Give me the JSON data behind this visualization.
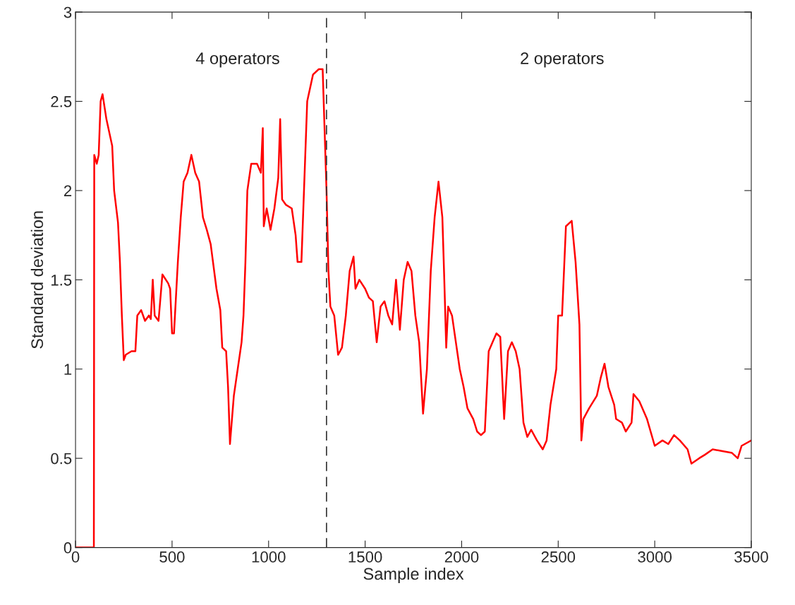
{
  "chart_data": {
    "type": "line",
    "xlabel": "Sample index",
    "ylabel": "Standard deviation",
    "xlim": [
      0,
      3500
    ],
    "xticks": [
      0,
      500,
      1000,
      1500,
      2000,
      2500,
      3000,
      3500
    ],
    "ylim": [
      0,
      3
    ],
    "yticks": [
      0,
      0.5,
      1,
      1.5,
      2,
      2.5,
      3
    ],
    "grid": false,
    "marker": "none",
    "line_style": "solid",
    "legend": false,
    "annotations": [
      "4 operators",
      "2 operators"
    ],
    "ref_lines": [
      {
        "axis": "x",
        "value": 1300,
        "color": "#333333",
        "line_style": "dashed"
      }
    ],
    "series": [
      {
        "color": "#ff0000",
        "x": [
          0,
          95,
          97,
          110,
          120,
          130,
          140,
          160,
          190,
          200,
          220,
          230,
          240,
          250,
          260,
          290,
          310,
          320,
          340,
          360,
          380,
          390,
          400,
          410,
          430,
          450,
          480,
          490,
          500,
          510,
          530,
          545,
          560,
          580,
          600,
          620,
          640,
          660,
          680,
          700,
          730,
          750,
          760,
          780,
          790,
          800,
          820,
          840,
          860,
          870,
          880,
          890,
          910,
          940,
          960,
          970,
          975,
          990,
          1010,
          1030,
          1050,
          1060,
          1070,
          1090,
          1120,
          1140,
          1150,
          1170,
          1180,
          1200,
          1230,
          1260,
          1280,
          1300,
          1310,
          1320,
          1340,
          1360,
          1380,
          1400,
          1420,
          1440,
          1450,
          1470,
          1500,
          1520,
          1540,
          1560,
          1580,
          1600,
          1620,
          1640,
          1660,
          1680,
          1700,
          1720,
          1740,
          1760,
          1780,
          1800,
          1820,
          1840,
          1860,
          1880,
          1900,
          1910,
          1920,
          1930,
          1950,
          1970,
          1990,
          2010,
          2030,
          2060,
          2080,
          2100,
          2120,
          2140,
          2160,
          2180,
          2200,
          2220,
          2240,
          2260,
          2280,
          2300,
          2320,
          2340,
          2360,
          2390,
          2420,
          2440,
          2460,
          2490,
          2500,
          2520,
          2540,
          2570,
          2590,
          2610,
          2620,
          2630,
          2660,
          2700,
          2720,
          2740,
          2760,
          2790,
          2800,
          2830,
          2850,
          2880,
          2890,
          2920,
          2960,
          3000,
          3040,
          3070,
          3100,
          3130,
          3170,
          3190,
          3230,
          3260,
          3300,
          3350,
          3400,
          3430,
          3450,
          3500
        ],
        "values": [
          0,
          0,
          2.2,
          2.15,
          2.2,
          2.5,
          2.54,
          2.4,
          2.25,
          2.0,
          1.82,
          1.6,
          1.3,
          1.05,
          1.08,
          1.1,
          1.1,
          1.3,
          1.33,
          1.27,
          1.3,
          1.28,
          1.5,
          1.3,
          1.27,
          1.53,
          1.48,
          1.45,
          1.2,
          1.2,
          1.6,
          1.85,
          2.05,
          2.1,
          2.2,
          2.1,
          2.05,
          1.85,
          1.78,
          1.7,
          1.45,
          1.33,
          1.12,
          1.1,
          0.9,
          0.58,
          0.85,
          1.0,
          1.15,
          1.3,
          1.6,
          2.0,
          2.15,
          2.15,
          2.1,
          2.35,
          1.8,
          1.9,
          1.78,
          1.9,
          2.07,
          2.4,
          1.95,
          1.92,
          1.9,
          1.75,
          1.6,
          1.6,
          1.9,
          2.5,
          2.65,
          2.68,
          2.68,
          2.0,
          1.55,
          1.35,
          1.3,
          1.08,
          1.12,
          1.3,
          1.55,
          1.63,
          1.45,
          1.5,
          1.45,
          1.4,
          1.38,
          1.15,
          1.35,
          1.38,
          1.3,
          1.25,
          1.5,
          1.22,
          1.5,
          1.6,
          1.55,
          1.3,
          1.15,
          0.75,
          1.0,
          1.55,
          1.85,
          2.05,
          1.85,
          1.5,
          1.12,
          1.35,
          1.3,
          1.15,
          1.0,
          0.9,
          0.78,
          0.72,
          0.65,
          0.63,
          0.65,
          1.1,
          1.15,
          1.2,
          1.18,
          0.72,
          1.1,
          1.15,
          1.1,
          1.0,
          0.7,
          0.62,
          0.66,
          0.6,
          0.55,
          0.6,
          0.8,
          1.0,
          1.3,
          1.3,
          1.8,
          1.83,
          1.6,
          1.25,
          0.6,
          0.72,
          0.78,
          0.85,
          0.95,
          1.03,
          0.9,
          0.8,
          0.72,
          0.7,
          0.65,
          0.7,
          0.86,
          0.82,
          0.72,
          0.57,
          0.6,
          0.58,
          0.63,
          0.6,
          0.55,
          0.47,
          0.5,
          0.52,
          0.55,
          0.54,
          0.53,
          0.5,
          0.57,
          0.6
        ]
      }
    ]
  }
}
